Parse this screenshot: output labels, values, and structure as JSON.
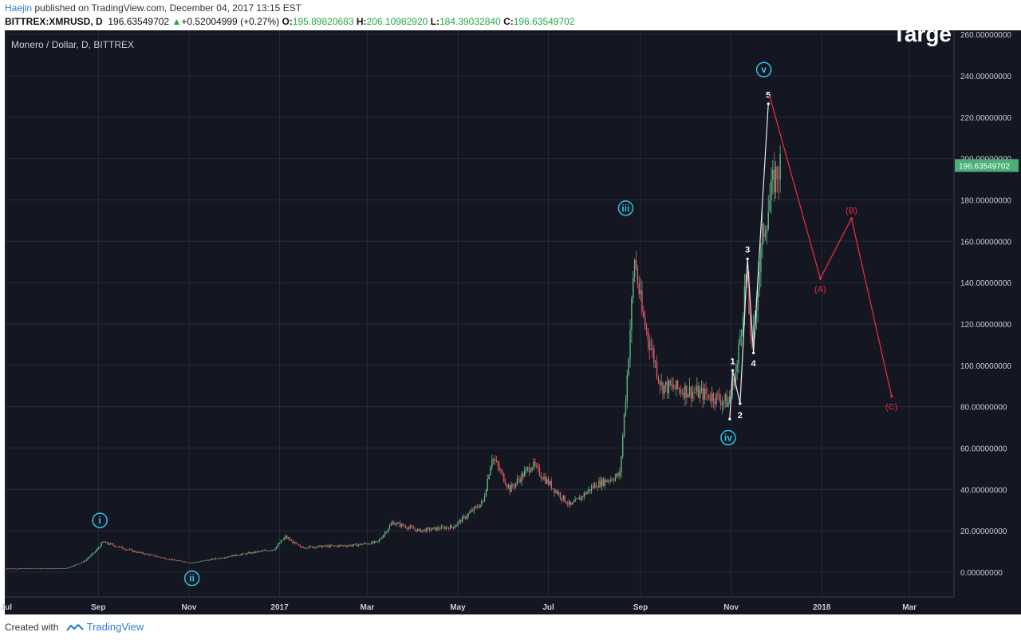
{
  "header": {
    "author": "Haejin",
    "published_text": "published on TradingView.com, December 04, 2017 13:15 EST",
    "symbol": "BITTREX:XMRUSD, D",
    "last": "196.63549702",
    "change_arrow": "▲",
    "change": "+0.52004999 (+0.27%)",
    "open_label": "O:",
    "open": "195.89820683",
    "high_label": "H:",
    "high": "206.10982920",
    "low_label": "L:",
    "low": "184.39032840",
    "close_label": "C:",
    "close": "196.63549702"
  },
  "footer": {
    "created_with": "Created with",
    "brand": "TradingView",
    "brand_icon": "tradingview-logo-icon"
  },
  "colors": {
    "background": "#141722",
    "grid": "#262a38",
    "up_candle": "#5fb882",
    "down_candle": "#e05a63",
    "wave_label": "#2ec3e0",
    "projection": "#e32b3a",
    "price_tag": "#4caf78"
  },
  "chart_data": {
    "type": "candlestick",
    "title": "Monero / Dollar, D, BITTREX",
    "overlay_text": "Targe",
    "ylim": [
      -12,
      262
    ],
    "y_ticks": [
      "260.00000000",
      "240.00000000",
      "220.00000000",
      "200.00000000",
      "180.00000000",
      "160.00000000",
      "140.00000000",
      "120.00000000",
      "100.00000000",
      "80.00000000",
      "60.00000000",
      "40.00000000",
      "20.00000000",
      "0.00000000"
    ],
    "y_tick_values": [
      260,
      240,
      220,
      200,
      180,
      160,
      140,
      120,
      100,
      80,
      60,
      40,
      20,
      0
    ],
    "x_ticks": [
      {
        "label": "Jul",
        "x": "2016-07-01"
      },
      {
        "label": "Sep",
        "x": "2016-09-01"
      },
      {
        "label": "Nov",
        "x": "2016-11-01"
      },
      {
        "label": "2017",
        "x": "2017-01-01"
      },
      {
        "label": "Mar",
        "x": "2017-03-01"
      },
      {
        "label": "May",
        "x": "2017-05-01"
      },
      {
        "label": "Jul",
        "x": "2017-07-01"
      },
      {
        "label": "Sep",
        "x": "2017-09-01"
      },
      {
        "label": "Nov",
        "x": "2017-11-01"
      },
      {
        "label": "2018",
        "x": "2018-01-01"
      },
      {
        "label": "Mar",
        "x": "2018-03-01"
      }
    ],
    "x_range": [
      "2016-06-30",
      "2018-03-31"
    ],
    "price_path": [
      [
        "2016-06-30",
        1.7
      ],
      [
        "2016-08-10",
        1.8
      ],
      [
        "2016-08-22",
        5
      ],
      [
        "2016-08-30",
        10
      ],
      [
        "2016-09-04",
        14.5
      ],
      [
        "2016-09-25",
        10
      ],
      [
        "2016-10-20",
        6
      ],
      [
        "2016-11-03",
        4.5
      ],
      [
        "2016-12-01",
        8
      ],
      [
        "2016-12-28",
        11
      ],
      [
        "2017-01-05",
        17
      ],
      [
        "2017-01-15",
        12
      ],
      [
        "2017-02-20",
        13
      ],
      [
        "2017-03-08",
        14.5
      ],
      [
        "2017-03-18",
        24
      ],
      [
        "2017-04-05",
        20
      ],
      [
        "2017-04-28",
        22
      ],
      [
        "2017-05-18",
        34
      ],
      [
        "2017-05-24",
        56
      ],
      [
        "2017-06-05",
        40
      ],
      [
        "2017-06-20",
        52
      ],
      [
        "2017-07-05",
        40
      ],
      [
        "2017-07-16",
        32
      ],
      [
        "2017-08-01",
        42
      ],
      [
        "2017-08-18",
        47
      ],
      [
        "2017-08-23",
        95
      ],
      [
        "2017-08-28",
        152
      ],
      [
        "2017-09-02",
        125
      ],
      [
        "2017-09-15",
        90
      ],
      [
        "2017-10-01",
        88
      ],
      [
        "2017-10-20",
        85
      ],
      [
        "2017-10-30",
        82
      ],
      [
        "2017-11-05",
        100
      ],
      [
        "2017-11-11",
        143
      ],
      [
        "2017-11-15",
        108
      ],
      [
        "2017-11-22",
        162
      ],
      [
        "2017-11-30",
        190
      ],
      [
        "2017-12-04",
        196.6
      ]
    ],
    "wave_labels": [
      {
        "label": "i",
        "x": "2016-09-02",
        "y": 25
      },
      {
        "label": "ii",
        "x": "2016-11-03",
        "y": -3
      },
      {
        "label": "iii",
        "x": "2017-08-22",
        "y": 176
      },
      {
        "label": "iv",
        "x": "2017-10-30",
        "y": 65
      },
      {
        "label": "v",
        "x": "2017-11-23",
        "y": 243
      }
    ],
    "sub_waves": {
      "points": [
        [
          "2017-10-31",
          74
        ],
        [
          "2017-11-02",
          97.5
        ],
        [
          "2017-11-07",
          81.5
        ],
        [
          "2017-11-12",
          151.5
        ],
        [
          "2017-11-16",
          106
        ],
        [
          "2017-11-26",
          226.5
        ]
      ],
      "labels": [
        {
          "label": "1",
          "x": "2017-11-02",
          "y": 102
        },
        {
          "label": "2",
          "x": "2017-11-07",
          "y": 76
        },
        {
          "label": "3",
          "x": "2017-11-12",
          "y": 156
        },
        {
          "label": "4",
          "x": "2017-11-16",
          "y": 101
        },
        {
          "label": "5",
          "x": "2017-11-26",
          "y": 231
        }
      ]
    },
    "projection": {
      "points": [
        [
          "2017-11-27",
          230
        ],
        [
          "2017-12-31",
          142
        ],
        [
          "2018-01-21",
          171
        ],
        [
          "2018-02-17",
          85
        ]
      ],
      "labels": [
        {
          "label": "(A)",
          "x": "2017-12-31",
          "y": 137
        },
        {
          "label": "(B)",
          "x": "2018-01-21",
          "y": 175
        },
        {
          "label": "(C)",
          "x": "2018-02-17",
          "y": 80
        }
      ]
    },
    "last_price_tag": {
      "value": 196.63549702,
      "label": "196.63549702"
    }
  }
}
